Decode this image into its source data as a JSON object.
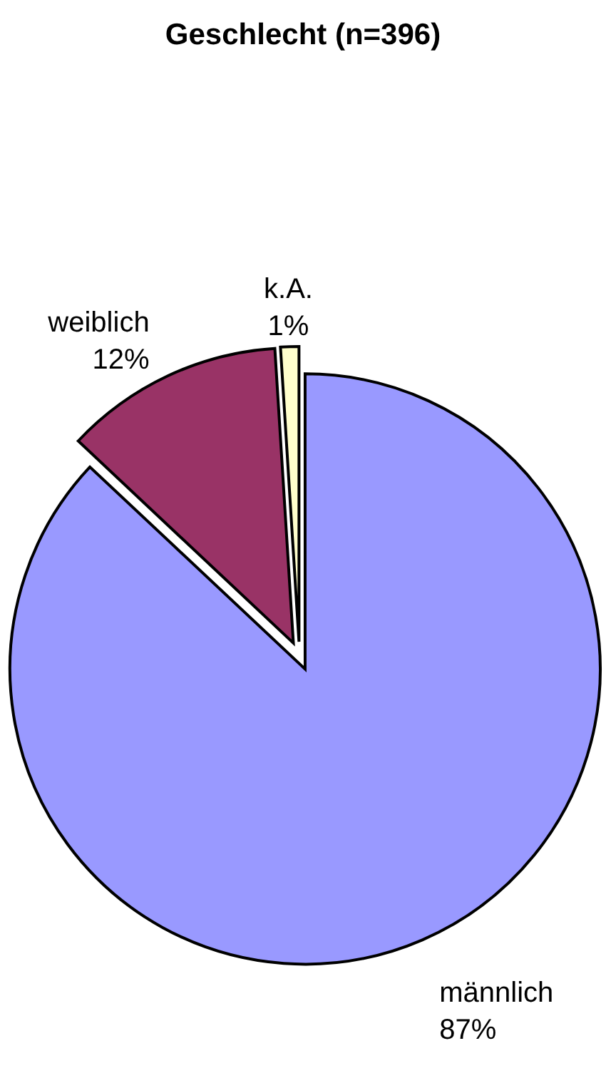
{
  "chart_data": {
    "type": "pie",
    "title": "Geschlecht (n=396)",
    "categories": [
      "männlich",
      "weiblich",
      "k.A."
    ],
    "values": [
      87,
      12,
      1
    ],
    "colors": [
      "#9999ff",
      "#993366",
      "#ffffcc"
    ],
    "value_labels": [
      "87%",
      "12%",
      "1%"
    ]
  }
}
